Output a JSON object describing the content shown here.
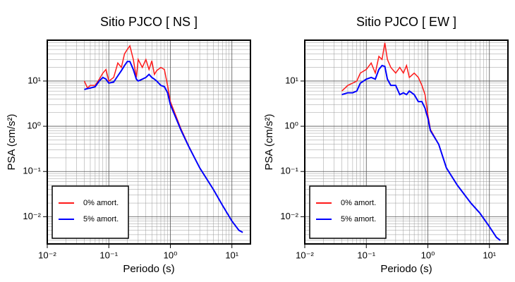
{
  "chart_data": [
    {
      "type": "line",
      "title": "Sitio PJCO [ NS ]",
      "x_label": "Periodo (s)",
      "y_label": "PSA (cm/s²)",
      "x_scale": "log",
      "y_scale": "log",
      "grid": true,
      "legend": "lower left",
      "xlim": [
        0.01,
        20
      ],
      "ylim": [
        0.0025,
        80
      ],
      "xticks": [
        {
          "value": 0.01,
          "label": "10⁻²"
        },
        {
          "value": 0.1,
          "label": "10⁻¹"
        },
        {
          "value": 1,
          "label": "10⁰"
        },
        {
          "value": 10,
          "label": "10¹"
        }
      ],
      "yticks": [
        {
          "value": 0.01,
          "label": "10⁻²"
        },
        {
          "value": 0.1,
          "label": "10⁻¹"
        },
        {
          "value": 1,
          "label": "10⁰"
        },
        {
          "value": 10,
          "label": "10¹"
        }
      ],
      "x": [
        0.04,
        0.045,
        0.05,
        0.06,
        0.07,
        0.08,
        0.09,
        0.1,
        0.12,
        0.14,
        0.16,
        0.18,
        0.2,
        0.22,
        0.25,
        0.28,
        0.3,
        0.35,
        0.4,
        0.45,
        0.5,
        0.55,
        0.6,
        0.7,
        0.8,
        0.9,
        1.0,
        1.5,
        2,
        3,
        5,
        7,
        10,
        13,
        15
      ],
      "series": [
        {
          "name": "0% amort.",
          "color": "#ff1a1a",
          "values": [
            10,
            7,
            8,
            8,
            11,
            15,
            18,
            10,
            12,
            25,
            20,
            40,
            50,
            60,
            30,
            12,
            30,
            20,
            30,
            18,
            28,
            14,
            17,
            20,
            18,
            8,
            3.5,
            0.85,
            0.36,
            0.12,
            0.04,
            0.018,
            0.008,
            0.005,
            0.0045
          ]
        },
        {
          "name": "5% amort.",
          "color": "#0000ff",
          "values": [
            6.5,
            6.8,
            7,
            7.5,
            10,
            12,
            11,
            9,
            9.5,
            13,
            17,
            22,
            27,
            27,
            18,
            11,
            10,
            11,
            12,
            14,
            12,
            11,
            10,
            8,
            7.5,
            5.5,
            3,
            0.8,
            0.35,
            0.12,
            0.04,
            0.018,
            0.008,
            0.005,
            0.0045
          ]
        }
      ]
    },
    {
      "type": "line",
      "title": "Sitio PJCO [ EW ]",
      "x_label": "Periodo (s)",
      "y_label": "PSA (cm/s²)",
      "x_scale": "log",
      "y_scale": "log",
      "grid": true,
      "legend": "lower left",
      "xlim": [
        0.01,
        20
      ],
      "ylim": [
        0.0025,
        80
      ],
      "xticks": [
        {
          "value": 0.01,
          "label": "10⁻²"
        },
        {
          "value": 0.1,
          "label": "10⁻¹"
        },
        {
          "value": 1,
          "label": "10⁰"
        },
        {
          "value": 10,
          "label": "10¹"
        }
      ],
      "yticks": [
        {
          "value": 0.01,
          "label": "10⁻²"
        },
        {
          "value": 0.1,
          "label": "10⁻¹"
        },
        {
          "value": 1,
          "label": "10⁰"
        },
        {
          "value": 10,
          "label": "10¹"
        }
      ],
      "x": [
        0.04,
        0.05,
        0.06,
        0.07,
        0.08,
        0.1,
        0.12,
        0.14,
        0.16,
        0.18,
        0.2,
        0.22,
        0.25,
        0.3,
        0.35,
        0.4,
        0.45,
        0.5,
        0.6,
        0.7,
        0.8,
        0.9,
        1.0,
        1.1,
        1.5,
        2,
        3,
        5,
        7,
        10,
        13,
        15
      ],
      "series": [
        {
          "name": "0% amort.",
          "color": "#ff1a1a",
          "values": [
            6,
            8,
            9,
            10,
            15,
            18,
            25,
            15,
            35,
            30,
            70,
            30,
            20,
            15,
            20,
            15,
            22,
            12,
            15,
            12,
            8,
            5,
            1.8,
            0.85,
            0.4,
            0.12,
            0.05,
            0.02,
            0.012,
            0.006,
            0.0035,
            0.003
          ]
        },
        {
          "name": "5% amort.",
          "color": "#0000ff",
          "values": [
            5,
            5.5,
            5.5,
            6,
            9,
            11,
            12,
            11,
            18,
            22,
            21,
            11,
            8,
            8,
            5,
            5.5,
            5,
            6,
            5,
            3.5,
            3.5,
            2.5,
            1.5,
            0.8,
            0.4,
            0.12,
            0.05,
            0.02,
            0.012,
            0.006,
            0.0035,
            0.003
          ]
        }
      ]
    }
  ]
}
